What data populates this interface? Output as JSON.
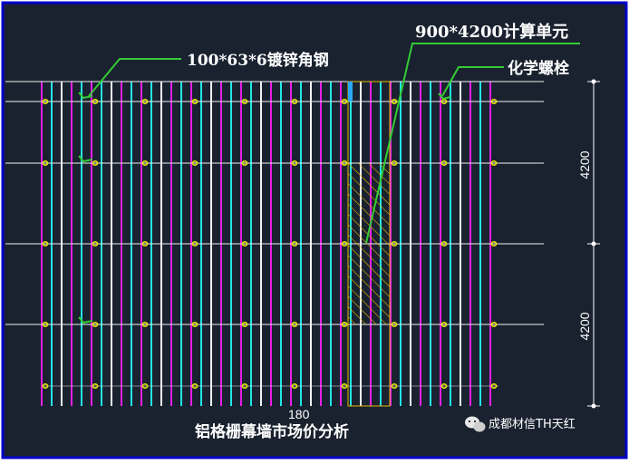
{
  "diagram": {
    "labels": {
      "angle_steel": "100*63*6镀锌角钢",
      "calc_unit": "900*4200计算单元",
      "chem_bolt": "化学螺栓"
    },
    "dimensions": {
      "upper": "4200",
      "lower": "4200",
      "bottom": "180"
    },
    "caption": "铝格栅幕墙市场价分析",
    "watermark": "成都材信TH天红",
    "colors": {
      "background": "#1a2230",
      "magenta": "#e61ee6",
      "cyan": "#22e6e6",
      "white": "#f2f2f2",
      "yellow": "#e6e600",
      "green": "#33cc33",
      "hatch": "#e6b800",
      "frame": "#0000c8"
    }
  }
}
